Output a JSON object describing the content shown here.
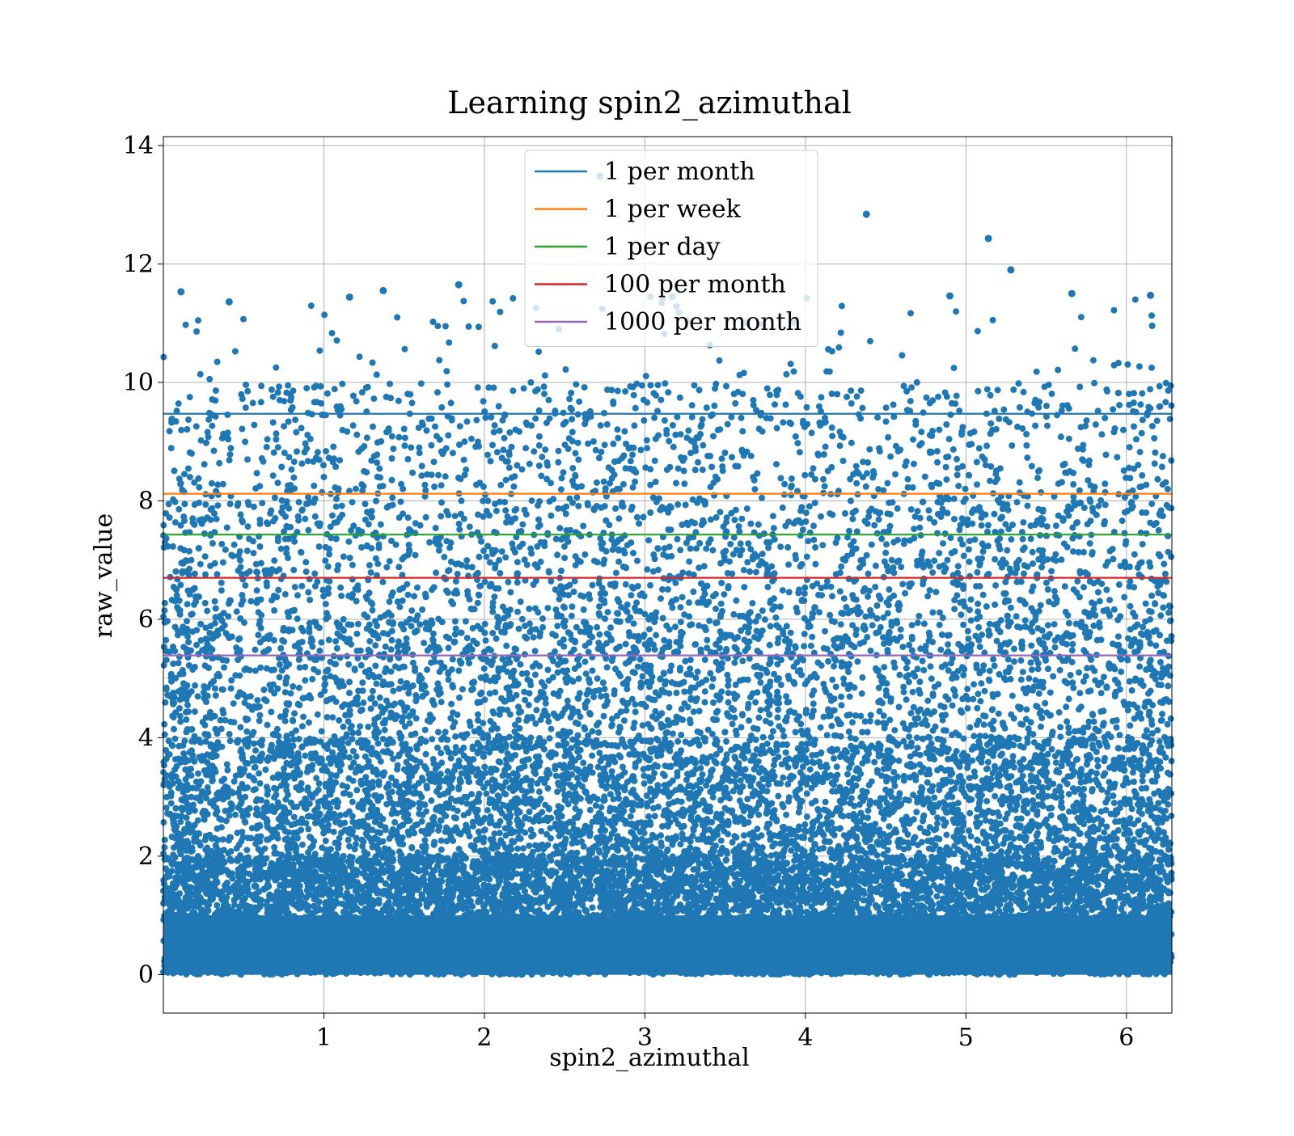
{
  "chart_data": {
    "type": "scatter",
    "title": "Learning spin2_azimuthal",
    "xlabel": "spin2_azimuthal",
    "ylabel": "raw_value",
    "xlim": [
      0.0,
      6.2832
    ],
    "ylim": [
      -0.65,
      14.15
    ],
    "xticks": [
      1,
      2,
      3,
      4,
      5,
      6
    ],
    "yticks": [
      0,
      2,
      4,
      6,
      8,
      10,
      12,
      14
    ],
    "grid": true,
    "legend_position": "upper-center",
    "scatter_color": "#1f77b4",
    "thresholds": [
      {
        "name": "1 per month",
        "value": 9.47,
        "color": "#1f77b4"
      },
      {
        "name": "1 per week",
        "value": 8.12,
        "color": "#ff7f0e"
      },
      {
        "name": "1 per day",
        "value": 7.43,
        "color": "#2ca02c"
      },
      {
        "name": "100 per month",
        "value": 6.7,
        "color": "#d62728"
      },
      {
        "name": "1000 per month",
        "value": 5.39,
        "color": "#9467bd"
      }
    ],
    "highlighted_points": [
      {
        "x": 2.72,
        "y": 13.48
      },
      {
        "x": 4.38,
        "y": 12.84
      },
      {
        "x": 5.14,
        "y": 12.43
      },
      {
        "x": 5.28,
        "y": 11.9
      },
      {
        "x": 0.11,
        "y": 11.53
      },
      {
        "x": 1.84,
        "y": 11.65
      },
      {
        "x": 1.37,
        "y": 11.55
      },
      {
        "x": 4.9,
        "y": 11.46
      },
      {
        "x": 6.15,
        "y": 11.47
      },
      {
        "x": 5.66,
        "y": 11.5
      },
      {
        "x": 3.17,
        "y": 11.45
      },
      {
        "x": 0.41,
        "y": 11.36
      },
      {
        "x": 1.16,
        "y": 11.44
      }
    ],
    "point_density": [
      {
        "y_range": [
          0,
          2
        ],
        "approx_points_per_unit_x": 4500
      },
      {
        "y_range": [
          2,
          4
        ],
        "approx_points_per_unit_x": 1100
      },
      {
        "y_range": [
          4,
          6
        ],
        "approx_points_per_unit_x": 600
      },
      {
        "y_range": [
          6,
          8
        ],
        "approx_points_per_unit_x": 420
      },
      {
        "y_range": [
          8,
          10
        ],
        "approx_points_per_unit_x": 270
      },
      {
        "y_range": [
          10,
          11.5
        ],
        "approx_points_per_unit_x": 25
      }
    ]
  }
}
